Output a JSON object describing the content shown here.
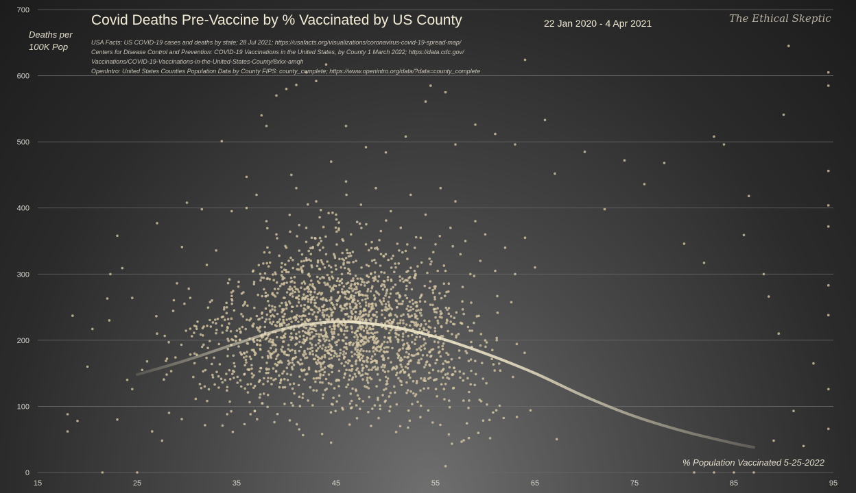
{
  "chart_data": {
    "type": "scatter",
    "title": "Covid Deaths Pre-Vaccine by % Vaccinated by US County",
    "date_range": "22 Jan 2020 - 4 Apr 2021",
    "watermark": "The Ethical Skeptic",
    "ylabel": "Deaths per\n100K Pop",
    "xlabel": "% Population Vaccinated 5-25-2022",
    "sources": [
      "USA Facts: US COVID-19 cases and deaths by state; 28 Jul 2021; https://usafacts.org/visualizations/coronavirus-covid-19-spread-map/",
      "Centers for Disease Control and Prevention: COVID-19 Vaccinations in the United States, by County 1 March 2022; https://data.cdc.gov/",
      "Vaccinations/COVID-19-Vaccinations-in-the-United-States-County/8xkx-amqh",
      "OpenIntro: United States Counties Population Data by County FIPS: county_complete; https://www.openintro.org/data/?data=county_complete"
    ],
    "xlim": [
      15,
      95
    ],
    "ylim": [
      0,
      700
    ],
    "x_ticks": [
      "15",
      "25",
      "35",
      "45",
      "55",
      "65",
      "75",
      "85",
      "95"
    ],
    "y_ticks": [
      "0",
      "100",
      "200",
      "300",
      "400",
      "500",
      "600",
      "700"
    ],
    "grid": "horizontal",
    "colors": {
      "points": "#d6c7a5",
      "trend": "#efe6c8",
      "grid": "#6a6a6a"
    },
    "trend": {
      "x": [
        25,
        30,
        35,
        40,
        45,
        50,
        55,
        60,
        65,
        70,
        75,
        80,
        85,
        87
      ],
      "y": [
        148,
        170,
        195,
        218,
        228,
        222,
        205,
        180,
        150,
        115,
        85,
        62,
        44,
        38
      ]
    },
    "series": [
      {
        "points": [
          [
            18,
            88
          ],
          [
            18,
            62
          ],
          [
            18.5,
            237
          ],
          [
            19,
            78
          ],
          [
            20,
            160
          ],
          [
            20.5,
            217
          ],
          [
            21.5,
            0
          ],
          [
            22,
            263
          ],
          [
            22.2,
            230
          ],
          [
            22.3,
            300
          ],
          [
            23,
            358
          ],
          [
            23.5,
            309
          ],
          [
            23,
            80
          ],
          [
            24,
            140
          ],
          [
            24.5,
            264
          ],
          [
            24.5,
            126
          ],
          [
            25,
            0
          ],
          [
            25.5,
            155
          ],
          [
            26,
            168
          ],
          [
            26.5,
            62
          ],
          [
            27,
            377
          ],
          [
            27,
            210
          ],
          [
            27.5,
            48
          ],
          [
            28,
            172
          ],
          [
            29,
            286
          ],
          [
            29.5,
            341
          ],
          [
            30,
            408
          ],
          [
            30.5,
            206
          ],
          [
            31,
            178
          ],
          [
            31.5,
            398
          ],
          [
            32,
            314
          ],
          [
            33,
            152
          ],
          [
            33.5,
            501
          ],
          [
            34.5,
            395
          ],
          [
            36,
            447
          ],
          [
            37.5,
            540
          ],
          [
            38,
            524
          ],
          [
            39,
            570
          ],
          [
            40,
            580
          ],
          [
            41,
            586
          ],
          [
            42,
            605
          ],
          [
            43,
            592
          ],
          [
            44,
            617
          ],
          [
            46,
            524
          ],
          [
            48,
            492
          ],
          [
            50,
            484
          ],
          [
            52,
            508
          ],
          [
            54,
            561
          ],
          [
            54.5,
            585
          ],
          [
            56,
            575
          ],
          [
            57,
            496
          ],
          [
            59,
            526
          ],
          [
            61,
            512
          ],
          [
            63,
            496
          ],
          [
            64,
            624
          ],
          [
            66,
            533
          ],
          [
            67,
            452
          ],
          [
            70,
            485
          ],
          [
            72,
            398
          ],
          [
            74,
            472
          ],
          [
            76,
            436
          ],
          [
            78,
            468
          ],
          [
            80,
            346
          ],
          [
            82,
            317
          ],
          [
            83,
            508
          ],
          [
            84,
            496
          ],
          [
            86,
            359
          ],
          [
            86.5,
            418
          ],
          [
            88,
            300
          ],
          [
            88.5,
            266
          ],
          [
            89.5,
            210
          ],
          [
            90,
            541
          ],
          [
            90.5,
            645
          ],
          [
            92,
            40
          ],
          [
            94.5,
            605
          ],
          [
            94.5,
            585
          ],
          [
            94.5,
            456
          ],
          [
            94.5,
            404
          ],
          [
            94.5,
            372
          ],
          [
            94.5,
            283
          ],
          [
            94.5,
            238
          ],
          [
            94.5,
            126
          ],
          [
            94.5,
            66
          ],
          [
            93,
            165
          ],
          [
            91,
            93
          ],
          [
            89,
            48
          ],
          [
            87,
            0
          ],
          [
            85,
            0
          ],
          [
            83,
            0
          ],
          [
            81,
            0
          ],
          [
            36,
            400
          ],
          [
            37,
            420
          ],
          [
            38,
            380
          ],
          [
            39,
            360
          ],
          [
            40,
            340
          ],
          [
            40.5,
            450
          ],
          [
            41,
            430
          ],
          [
            41.5,
            310
          ],
          [
            42,
            370
          ],
          [
            42.5,
            290
          ],
          [
            43,
            410
          ],
          [
            43.5,
            350
          ],
          [
            44,
            330
          ],
          [
            44.5,
            470
          ],
          [
            45,
            390
          ],
          [
            45.5,
            310
          ],
          [
            46,
            440
          ],
          [
            46.5,
            360
          ],
          [
            47,
            320
          ],
          [
            47.5,
            405
          ],
          [
            48,
            345
          ],
          [
            48.5,
            300
          ],
          [
            49,
            430
          ],
          [
            49.5,
            365
          ],
          [
            50,
            330
          ],
          [
            50.5,
            395
          ],
          [
            51,
            310
          ],
          [
            51.5,
            370
          ],
          [
            52,
            335
          ],
          [
            52.5,
            420
          ],
          [
            53,
            300
          ],
          [
            53.5,
            355
          ],
          [
            54,
            390
          ],
          [
            54.5,
            315
          ],
          [
            55,
            345
          ],
          [
            55.5,
            430
          ],
          [
            56,
            305
          ],
          [
            56.5,
            370
          ],
          [
            57,
            410
          ],
          [
            57.5,
            330
          ],
          [
            58,
            350
          ],
          [
            58.5,
            300
          ],
          [
            59,
            380
          ],
          [
            59.5,
            320
          ],
          [
            60,
            360
          ],
          [
            61,
            305
          ],
          [
            62,
            340
          ],
          [
            63,
            300
          ],
          [
            64,
            355
          ],
          [
            65,
            310
          ]
        ]
      }
    ]
  }
}
